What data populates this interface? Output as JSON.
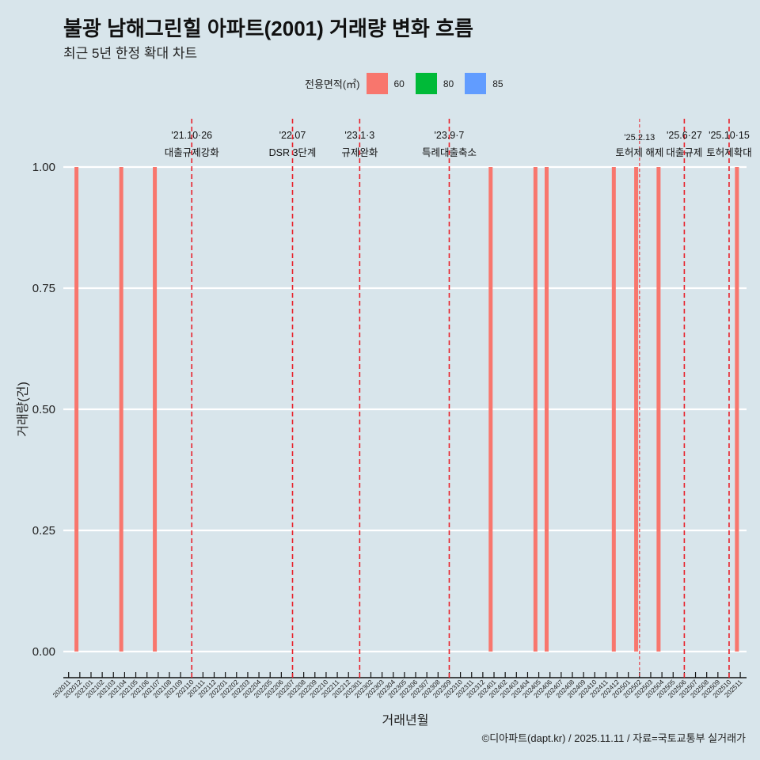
{
  "title": "불광 남해그린힐 아파트(2001) 거래량 변화 흐름",
  "subtitle": "최근 5년 한정 확대 차트",
  "legend": {
    "title": "전용면적(㎡)",
    "items": [
      {
        "label": "60",
        "color": "#f8766d"
      },
      {
        "label": "80",
        "color": "#00ba38"
      },
      {
        "label": "85",
        "color": "#619cff"
      }
    ]
  },
  "caption": "©디아파트(dapt.kr) / 2025.11.11 / 자료=국토교통부 실거래가",
  "chart_data": {
    "type": "bar",
    "title": "불광 남해그린힐 아파트(2001) 거래량 변화 흐름",
    "xlabel": "거래년월",
    "ylabel": "거래량(건)",
    "ylim": [
      0,
      1
    ],
    "yticks": [
      "0.00",
      "0.25",
      "0.50",
      "0.75",
      "1.00"
    ],
    "categories": [
      "202011",
      "202012",
      "202101",
      "202102",
      "202103",
      "202104",
      "202105",
      "202106",
      "202107",
      "202108",
      "202109",
      "202110",
      "202111",
      "202112",
      "202201",
      "202202",
      "202203",
      "202204",
      "202205",
      "202206",
      "202207",
      "202208",
      "202209",
      "202210",
      "202211",
      "202212",
      "202301",
      "202302",
      "202303",
      "202304",
      "202305",
      "202306",
      "202307",
      "202308",
      "202309",
      "202310",
      "202311",
      "202312",
      "202401",
      "202402",
      "202403",
      "202404",
      "202405",
      "202406",
      "202407",
      "202408",
      "202409",
      "202410",
      "202411",
      "202412",
      "202501",
      "202502",
      "202503",
      "202504",
      "202505",
      "202506",
      "202507",
      "202508",
      "202509",
      "202510",
      "202511"
    ],
    "series": [
      {
        "name": "60",
        "color": "#f8766d",
        "bars": [
          {
            "month": "202011",
            "value": 1
          },
          {
            "month": "202103",
            "value": 1
          },
          {
            "month": "202106",
            "value": 1
          },
          {
            "month": "202312",
            "value": 1
          },
          {
            "month": "202404",
            "value": 1
          },
          {
            "month": "202405",
            "value": 1
          },
          {
            "month": "202411",
            "value": 1
          },
          {
            "month": "202501",
            "value": 1
          },
          {
            "month": "202503",
            "value": 1
          },
          {
            "month": "202510",
            "value": 1
          }
        ]
      }
    ],
    "events": [
      {
        "month": "202110",
        "date": "'21.10·26",
        "label": "대출규제강화"
      },
      {
        "month": "202207",
        "date": "'22.07",
        "label": "DSR 3단계"
      },
      {
        "month": "202301",
        "date": "'23.1·3",
        "label": "규제완화"
      },
      {
        "month": "202309",
        "date": "'23.9·7",
        "label": "특례대출축소"
      },
      {
        "month": "202502",
        "date": "'25.2.13",
        "label": "토허제 해제",
        "thin": true
      },
      {
        "month": "202506",
        "date": "'25.6·27",
        "label": "대출규제"
      },
      {
        "month": "202510",
        "date": "'25.10·15",
        "label": "토허제확대"
      }
    ]
  }
}
